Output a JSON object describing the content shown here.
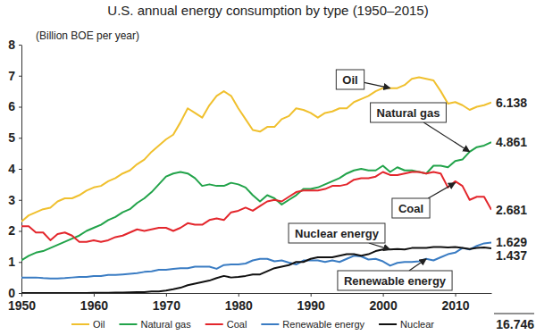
{
  "chart_data": {
    "type": "line",
    "title": "U.S. annual energy consumption by type (1950–2015)",
    "y_label": "(Billion BOE per year)",
    "x": [
      1950,
      1951,
      1952,
      1953,
      1954,
      1955,
      1956,
      1957,
      1958,
      1959,
      1960,
      1961,
      1962,
      1963,
      1964,
      1965,
      1966,
      1967,
      1968,
      1969,
      1970,
      1971,
      1972,
      1973,
      1974,
      1975,
      1976,
      1977,
      1978,
      1979,
      1980,
      1981,
      1982,
      1983,
      1984,
      1985,
      1986,
      1987,
      1988,
      1989,
      1990,
      1991,
      1992,
      1993,
      1994,
      1995,
      1996,
      1997,
      1998,
      1999,
      2000,
      2001,
      2002,
      2003,
      2004,
      2005,
      2006,
      2007,
      2008,
      2009,
      2010,
      2011,
      2012,
      2013,
      2014,
      2015
    ],
    "xlim": [
      1950,
      2015
    ],
    "xticks": [
      1950,
      1960,
      1970,
      1980,
      1990,
      2000,
      2010
    ],
    "ylim": [
      0,
      8
    ],
    "yticks": [
      0,
      1,
      2,
      3,
      4,
      5,
      6,
      7,
      8
    ],
    "legend": "bottom",
    "series": [
      {
        "name": "Oil",
        "color": "#f0c02e",
        "values": [
          2.3,
          2.5,
          2.6,
          2.7,
          2.75,
          2.95,
          3.05,
          3.05,
          3.15,
          3.3,
          3.4,
          3.45,
          3.6,
          3.7,
          3.85,
          3.95,
          4.15,
          4.3,
          4.55,
          4.75,
          4.95,
          5.1,
          5.5,
          5.95,
          5.8,
          5.65,
          6.05,
          6.35,
          6.5,
          6.35,
          5.95,
          5.6,
          5.25,
          5.2,
          5.35,
          5.35,
          5.6,
          5.7,
          5.95,
          5.9,
          5.8,
          5.65,
          5.8,
          5.85,
          5.95,
          5.95,
          6.15,
          6.25,
          6.35,
          6.5,
          6.6,
          6.6,
          6.6,
          6.7,
          6.9,
          6.95,
          6.9,
          6.85,
          6.5,
          6.1,
          6.15,
          6.05,
          5.9,
          6.0,
          6.05,
          6.138
        ]
      },
      {
        "name": "Natural gas",
        "color": "#22a34a",
        "values": [
          1.05,
          1.2,
          1.3,
          1.35,
          1.45,
          1.55,
          1.65,
          1.75,
          1.85,
          2.0,
          2.1,
          2.2,
          2.35,
          2.45,
          2.6,
          2.7,
          2.9,
          3.05,
          3.25,
          3.5,
          3.75,
          3.85,
          3.9,
          3.85,
          3.7,
          3.45,
          3.5,
          3.45,
          3.45,
          3.55,
          3.5,
          3.4,
          3.15,
          2.95,
          3.15,
          3.05,
          2.85,
          3.0,
          3.15,
          3.35,
          3.35,
          3.4,
          3.5,
          3.6,
          3.7,
          3.85,
          3.95,
          4.0,
          3.95,
          3.95,
          4.1,
          3.9,
          4.05,
          3.95,
          3.95,
          3.9,
          3.85,
          4.1,
          4.1,
          4.05,
          4.25,
          4.3,
          4.55,
          4.7,
          4.75,
          4.861
        ]
      },
      {
        "name": "Coal",
        "color": "#e3262c",
        "values": [
          2.15,
          2.15,
          1.95,
          1.95,
          1.7,
          1.9,
          1.95,
          1.85,
          1.65,
          1.65,
          1.7,
          1.65,
          1.7,
          1.8,
          1.85,
          1.95,
          2.05,
          2.0,
          2.05,
          2.1,
          2.1,
          2.0,
          2.1,
          2.25,
          2.2,
          2.2,
          2.35,
          2.4,
          2.35,
          2.6,
          2.65,
          2.75,
          2.65,
          2.8,
          2.95,
          3.0,
          2.95,
          3.1,
          3.25,
          3.3,
          3.3,
          3.3,
          3.35,
          3.45,
          3.45,
          3.5,
          3.65,
          3.7,
          3.7,
          3.75,
          3.9,
          3.8,
          3.8,
          3.85,
          3.9,
          3.9,
          3.85,
          3.9,
          3.85,
          3.4,
          3.6,
          3.45,
          3.0,
          3.1,
          3.1,
          2.681
        ]
      },
      {
        "name": "Renewable energy",
        "color": "#3a7cc3",
        "values": [
          0.5,
          0.5,
          0.5,
          0.48,
          0.47,
          0.47,
          0.48,
          0.5,
          0.52,
          0.52,
          0.55,
          0.55,
          0.58,
          0.58,
          0.6,
          0.62,
          0.64,
          0.68,
          0.7,
          0.75,
          0.75,
          0.78,
          0.8,
          0.8,
          0.85,
          0.85,
          0.85,
          0.78,
          0.9,
          0.92,
          0.92,
          0.95,
          1.05,
          1.1,
          1.1,
          1.02,
          1.05,
          0.98,
          0.92,
          1.05,
          1.05,
          1.05,
          1.0,
          1.05,
          1.0,
          1.1,
          1.2,
          1.18,
          1.08,
          1.1,
          1.02,
          0.88,
          0.97,
          1.0,
          1.0,
          1.02,
          1.1,
          1.05,
          1.15,
          1.25,
          1.3,
          1.45,
          1.4,
          1.52,
          1.6,
          1.629
        ]
      },
      {
        "name": "Nuclear",
        "color": "#111111",
        "values": [
          0,
          0,
          0,
          0,
          0,
          0,
          0,
          0,
          0,
          0,
          0.005,
          0.01,
          0.01,
          0.015,
          0.015,
          0.02,
          0.03,
          0.03,
          0.05,
          0.05,
          0.08,
          0.12,
          0.17,
          0.25,
          0.3,
          0.35,
          0.4,
          0.48,
          0.55,
          0.5,
          0.52,
          0.55,
          0.6,
          0.6,
          0.7,
          0.8,
          0.85,
          0.9,
          1.0,
          1.0,
          1.1,
          1.15,
          1.15,
          1.15,
          1.2,
          1.25,
          1.25,
          1.2,
          1.25,
          1.35,
          1.4,
          1.4,
          1.42,
          1.4,
          1.45,
          1.45,
          1.45,
          1.48,
          1.48,
          1.47,
          1.48,
          1.45,
          1.42,
          1.45,
          1.47,
          1.437
        ]
      }
    ],
    "annotations": [
      {
        "text": "Oil",
        "x": 2001,
        "y": 6.6
      },
      {
        "text": "Natural gas",
        "x": 2012,
        "y": 4.55
      },
      {
        "text": "Coal",
        "x": 2010,
        "y": 3.55
      },
      {
        "text": "Nuclear energy",
        "x": 2001,
        "y": 1.4
      },
      {
        "text": "Renewable energy",
        "x": 2006,
        "y": 1.1
      }
    ],
    "total": 16.746
  }
}
